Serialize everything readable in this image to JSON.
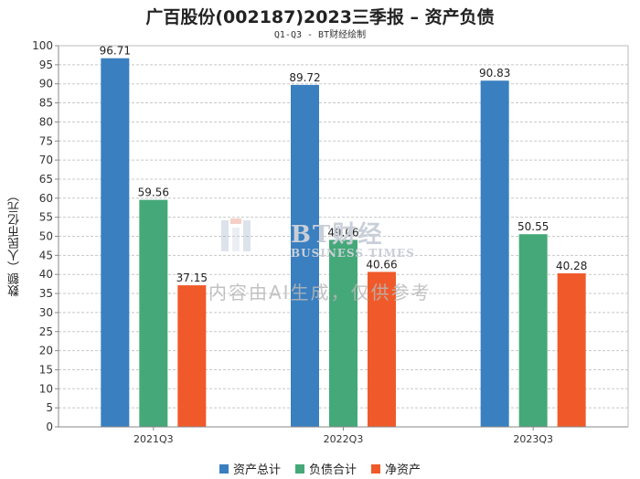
{
  "chart_data": {
    "type": "bar",
    "title": "广百股份(002187)2023三季报 – 资产负债",
    "subtitle": "Q1-Q3 - BT财经绘制",
    "ylabel": "数额（人民币亿元）",
    "xlabel": "",
    "ylim": [
      0,
      100
    ],
    "yticks": [
      0,
      5,
      10,
      15,
      20,
      25,
      30,
      35,
      40,
      45,
      50,
      55,
      60,
      65,
      70,
      75,
      80,
      85,
      90,
      95,
      100
    ],
    "categories": [
      "2021Q3",
      "2022Q3",
      "2023Q3"
    ],
    "series": [
      {
        "name": "资产总计",
        "color": "#3a7fbf",
        "values": [
          96.71,
          89.72,
          90.83
        ]
      },
      {
        "name": "负债合计",
        "color": "#45a878",
        "values": [
          59.56,
          49.06,
          50.55
        ]
      },
      {
        "name": "净资产",
        "color": "#f05a2a",
        "values": [
          37.15,
          40.66,
          40.28
        ]
      }
    ],
    "grid": true,
    "legend_position": "bottom-center"
  },
  "watermark": {
    "brand": "BT财经",
    "brand_sub": "BUSINESS TIMES",
    "note": "内容由AI生成，仅供参考"
  }
}
